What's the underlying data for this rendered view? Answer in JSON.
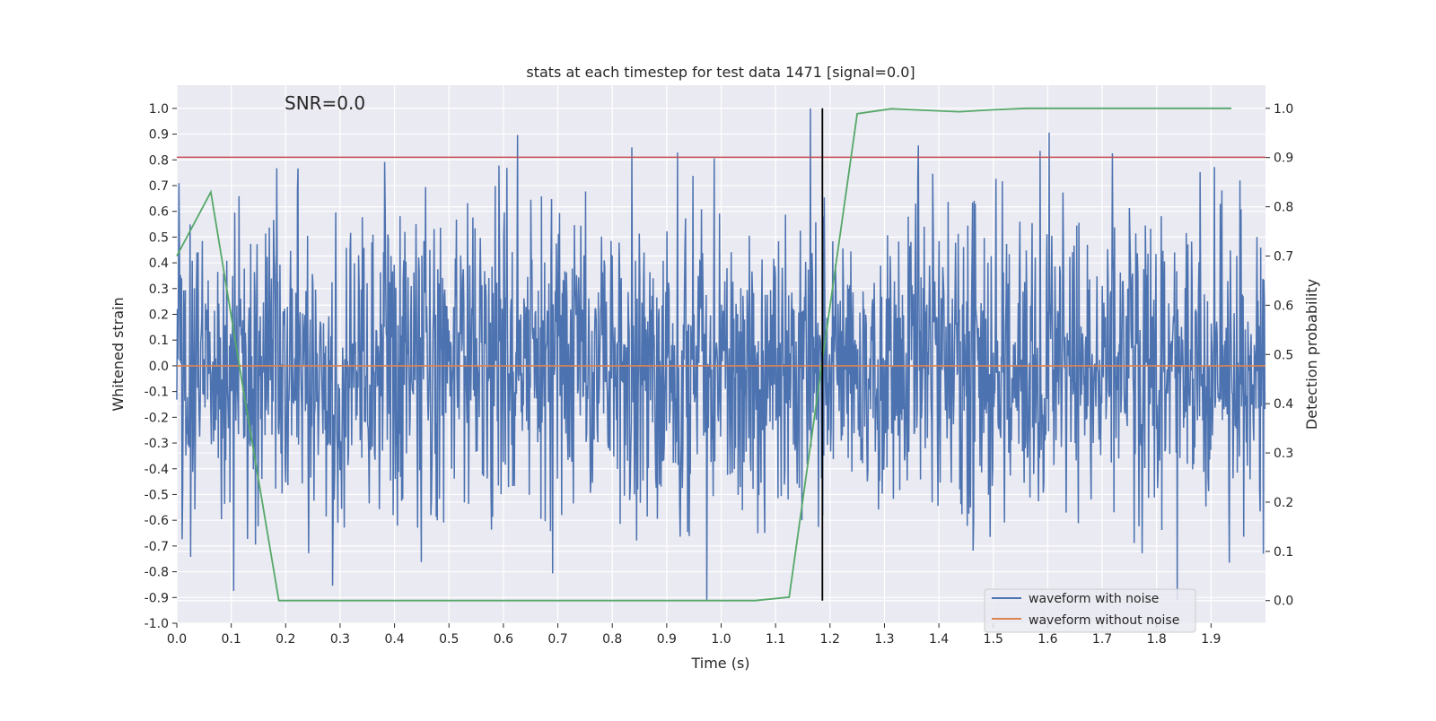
{
  "chart_data": {
    "type": "line",
    "title": "stats at each timestep for test data 1471 [signal=0.0]",
    "annotation": "SNR=0.0",
    "xlabel": "Time (s)",
    "ylabel_left": "Whitened strain",
    "ylabel_right": "Detection probability",
    "xlim": [
      0.0,
      2.0
    ],
    "ylim_left": [
      -1.0,
      1.09
    ],
    "ylim_right": [
      -0.046,
      1.047
    ],
    "x_ticks": [
      "0.0",
      "0.1",
      "0.2",
      "0.3",
      "0.4",
      "0.5",
      "0.6",
      "0.7",
      "0.8",
      "0.9",
      "1.0",
      "1.1",
      "1.2",
      "1.3",
      "1.4",
      "1.5",
      "1.6",
      "1.7",
      "1.8",
      "1.9"
    ],
    "y_ticks_left": [
      "-1.0",
      "-0.9",
      "-0.8",
      "-0.7",
      "-0.6",
      "-0.5",
      "-0.4",
      "-0.3",
      "-0.2",
      "-0.1",
      "0.0",
      "0.1",
      "0.2",
      "0.3",
      "0.4",
      "0.5",
      "0.6",
      "0.7",
      "0.8",
      "0.9",
      "1.0"
    ],
    "y_ticks_right": [
      "0.0",
      "0.1",
      "0.2",
      "0.3",
      "0.4",
      "0.5",
      "0.6",
      "0.7",
      "0.8",
      "0.9",
      "1.0"
    ],
    "grid": true,
    "legend_position": "bottom-right",
    "series": [
      {
        "name": "waveform with noise",
        "axis": "left",
        "color": "#4c72b0",
        "kind": "noise",
        "approx_range": [
          -0.91,
          1.0
        ]
      },
      {
        "name": "waveform without noise",
        "axis": "left",
        "color": "#dd8452",
        "x": [
          0.0,
          2.0
        ],
        "y": [
          0.0,
          0.0
        ]
      },
      {
        "axis": "right",
        "color": "#55a868",
        "x": [
          0.0,
          0.0625,
          0.125,
          0.1875,
          0.25,
          0.3125,
          0.375,
          0.4375,
          0.5,
          0.5625,
          0.625,
          0.6875,
          0.75,
          0.8125,
          0.875,
          0.9375,
          1.0,
          1.0625,
          1.125,
          1.1875,
          1.25,
          1.3125,
          1.375,
          1.4375,
          1.5,
          1.5625,
          1.625,
          1.6875,
          1.75,
          1.8125,
          1.875,
          1.9375
        ],
        "y": [
          0.7,
          0.83,
          0.41,
          0.0,
          0.0,
          0.0,
          0.0,
          0.0,
          0.0,
          0.0,
          0.0,
          0.0,
          0.0,
          0.0,
          0.0,
          0.0,
          0.0,
          0.0,
          0.007,
          0.5,
          0.989,
          0.999,
          0.996,
          0.993,
          0.997,
          1.0,
          1.0,
          1.0,
          1.0,
          1.0,
          1.0,
          1.0
        ]
      }
    ],
    "threshold_line": {
      "axis": "left",
      "y": 0.81,
      "color": "#c44e52"
    },
    "vertical_line": {
      "x": 1.186,
      "color": "#000000"
    }
  }
}
